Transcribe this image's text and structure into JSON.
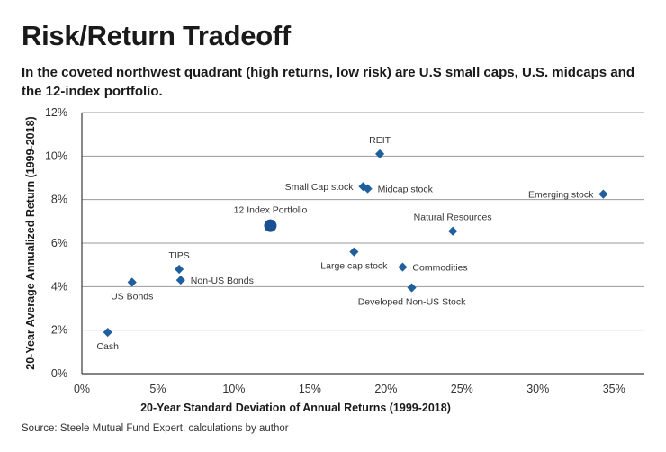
{
  "header": {
    "title": "Risk/Return Tradeoff",
    "subtitle": "In the coveted northwest quadrant (high returns, low risk) are U.S small caps, U.S. midcaps and the 12-index portfolio."
  },
  "footer": {
    "source": "Source: Steele Mutual Fund Expert, calculations by author"
  },
  "colors": {
    "marker": "#1f5f9e",
    "highlight": "#1a4f92"
  },
  "chart_data": {
    "type": "scatter",
    "title": "Risk/Return Tradeoff",
    "xlabel": "20-Year Standard Deviation of  Annual Returns (1999-2018)",
    "ylabel": "20-Year Average Annualized Return (1999-2018)",
    "xlim": [
      0,
      37
    ],
    "ylim": [
      0,
      12
    ],
    "grid": true,
    "x_ticks": [
      0,
      5,
      10,
      15,
      20,
      25,
      30,
      35
    ],
    "y_ticks": [
      0,
      2,
      4,
      6,
      8,
      10,
      12
    ],
    "x_tick_labels": [
      "0%",
      "5%",
      "10%",
      "15%",
      "20%",
      "25%",
      "30%",
      "35%"
    ],
    "y_tick_labels": [
      "0%",
      "2%",
      "4%",
      "6%",
      "8%",
      "10%",
      "12%"
    ],
    "points": [
      {
        "label": "Cash",
        "x": 1.7,
        "y": 1.9,
        "marker": "diamond",
        "label_pos": "below"
      },
      {
        "label": "US Bonds",
        "x": 3.3,
        "y": 4.2,
        "marker": "diamond",
        "label_pos": "below"
      },
      {
        "label": "TIPS",
        "x": 6.4,
        "y": 4.8,
        "marker": "diamond",
        "label_pos": "above"
      },
      {
        "label": "Non-US Bonds",
        "x": 6.5,
        "y": 4.3,
        "marker": "diamond",
        "label_pos": "right"
      },
      {
        "label": "12 Index Portfolio",
        "x": 12.4,
        "y": 6.8,
        "marker": "circle",
        "label_pos": "above"
      },
      {
        "label": "Large cap stock",
        "x": 17.9,
        "y": 5.6,
        "marker": "diamond",
        "label_pos": "below"
      },
      {
        "label": "Small Cap stock",
        "x": 18.5,
        "y": 8.6,
        "marker": "diamond",
        "label_pos": "left"
      },
      {
        "label": "Midcap stock",
        "x": 18.8,
        "y": 8.5,
        "marker": "diamond",
        "label_pos": "right"
      },
      {
        "label": "REIT",
        "x": 19.6,
        "y": 10.1,
        "marker": "diamond",
        "label_pos": "above"
      },
      {
        "label": "Commodities",
        "x": 21.1,
        "y": 4.9,
        "marker": "diamond",
        "label_pos": "right"
      },
      {
        "label": "Developed Non-US  Stock",
        "x": 21.7,
        "y": 3.95,
        "marker": "diamond",
        "label_pos": "below"
      },
      {
        "label": "Natural Resources",
        "x": 24.4,
        "y": 6.55,
        "marker": "diamond",
        "label_pos": "above"
      },
      {
        "label": "Emerging stock",
        "x": 34.3,
        "y": 8.25,
        "marker": "diamond",
        "label_pos": "left"
      }
    ]
  }
}
